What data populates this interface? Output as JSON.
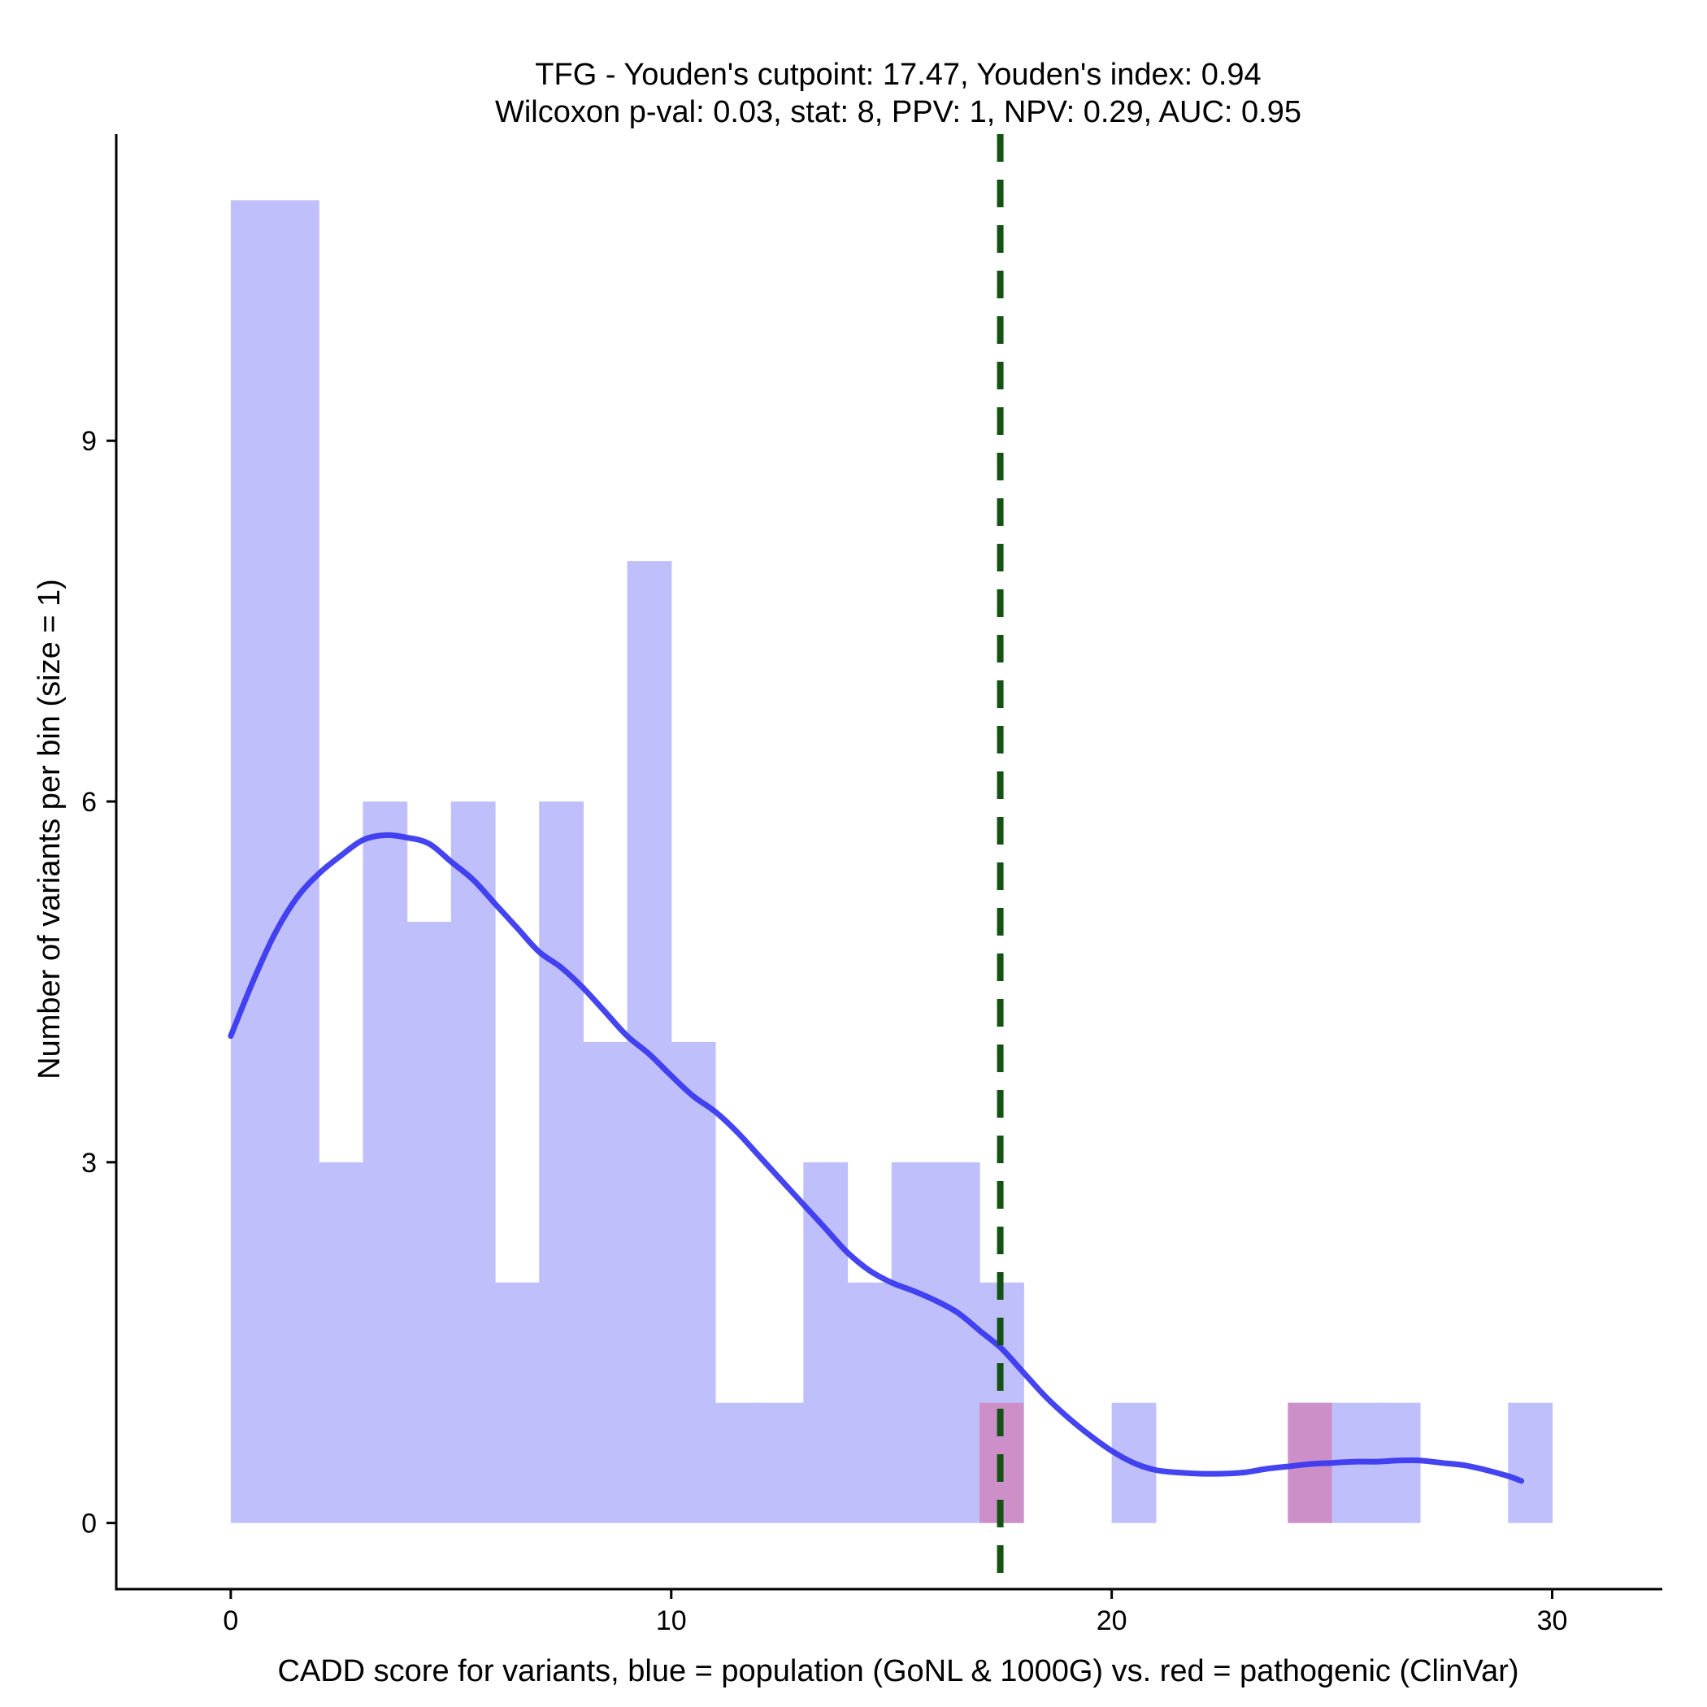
{
  "chart_data": {
    "type": "bar",
    "title": "TFG - Youden's cutpoint: 17.47, Youden's index: 0.94",
    "subtitle": "Wilcoxon p-val: 0.03, stat: 8, PPV: 1, NPV: 0.29, AUC: 0.95",
    "xlabel": "CADD score for variants, blue = population (GoNL & 1000G) vs. red = pathogenic (ClinVar)",
    "ylabel": "Number of variants per bin (size = 1)",
    "xlim": [
      -2.6,
      32.5
    ],
    "ylim": [
      -0.55,
      11.55
    ],
    "xticks": [
      0,
      10,
      20,
      30
    ],
    "yticks": [
      0,
      3,
      6,
      9
    ],
    "bin_width": 1,
    "cutpoint": 17.47,
    "colors": {
      "population": "#bfbffc",
      "pathogenic": "#cc8fc8",
      "density": "#3a3af0",
      "cutpoint": "#145214"
    },
    "series": [
      {
        "name": "population (GoNL & 1000G)",
        "bins": [
          {
            "x": 0,
            "count": 11
          },
          {
            "x": 1,
            "count": 11
          },
          {
            "x": 2,
            "count": 3
          },
          {
            "x": 3,
            "count": 6
          },
          {
            "x": 4,
            "count": 5
          },
          {
            "x": 5,
            "count": 6
          },
          {
            "x": 6,
            "count": 2
          },
          {
            "x": 7,
            "count": 6
          },
          {
            "x": 8,
            "count": 4
          },
          {
            "x": 9,
            "count": 8
          },
          {
            "x": 10,
            "count": 4
          },
          {
            "x": 11,
            "count": 1
          },
          {
            "x": 12,
            "count": 1
          },
          {
            "x": 13,
            "count": 3
          },
          {
            "x": 14,
            "count": 2
          },
          {
            "x": 15,
            "count": 3
          },
          {
            "x": 16,
            "count": 3
          },
          {
            "x": 17,
            "count": 2
          },
          {
            "x": 20,
            "count": 1
          },
          {
            "x": 24,
            "count": 1
          },
          {
            "x": 25,
            "count": 1
          },
          {
            "x": 26,
            "count": 1
          },
          {
            "x": 29,
            "count": 1
          }
        ]
      },
      {
        "name": "pathogenic (ClinVar)",
        "bins": [
          {
            "x": 17,
            "count": 1
          },
          {
            "x": 24,
            "count": 1
          }
        ]
      },
      {
        "name": "population density curve",
        "x": [
          0,
          0.5,
          1,
          1.5,
          2,
          2.5,
          3,
          3.5,
          4,
          4.5,
          5,
          5.5,
          6,
          6.5,
          7,
          7.5,
          8,
          8.5,
          9,
          9.5,
          10,
          10.5,
          11,
          11.5,
          12,
          12.5,
          13,
          13.5,
          14,
          14.5,
          15,
          15.5,
          16,
          16.5,
          17,
          17.5,
          18,
          18.5,
          19,
          19.5,
          20,
          20.5,
          21,
          21.5,
          22,
          22.5,
          23,
          23.5,
          24,
          24.5,
          25,
          25.5,
          26,
          26.5,
          27,
          27.5,
          28,
          28.5,
          29,
          29.3
        ],
        "values": [
          4.05,
          4.5,
          4.9,
          5.2,
          5.4,
          5.55,
          5.68,
          5.72,
          5.7,
          5.65,
          5.5,
          5.35,
          5.15,
          4.95,
          4.75,
          4.62,
          4.45,
          4.25,
          4.05,
          3.9,
          3.72,
          3.55,
          3.42,
          3.25,
          3.05,
          2.85,
          2.65,
          2.45,
          2.25,
          2.1,
          2.0,
          1.93,
          1.85,
          1.75,
          1.6,
          1.45,
          1.25,
          1.05,
          0.88,
          0.73,
          0.6,
          0.5,
          0.44,
          0.42,
          0.41,
          0.41,
          0.42,
          0.45,
          0.47,
          0.49,
          0.5,
          0.51,
          0.51,
          0.52,
          0.52,
          0.5,
          0.48,
          0.44,
          0.39,
          0.35
        ]
      }
    ]
  }
}
